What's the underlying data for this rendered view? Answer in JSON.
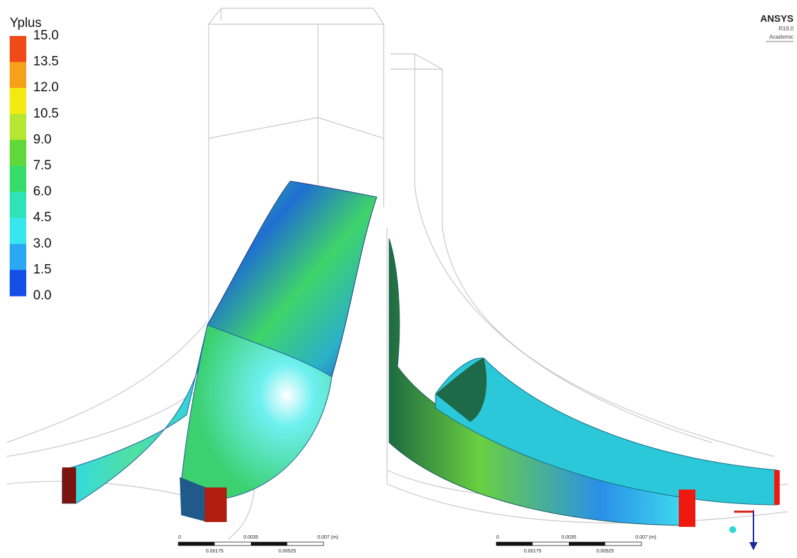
{
  "legend": {
    "title": "Yplus",
    "labels": [
      "15.0",
      "13.5",
      "12.0",
      "10.5",
      "9.0",
      "7.5",
      "6.0",
      "4.5",
      "3.0",
      "1.5",
      "0.0"
    ],
    "colors": [
      "#ee4a1a",
      "#f5a21a",
      "#f2ea10",
      "#b6e632",
      "#5ed83a",
      "#38dc6a",
      "#2fe2b8",
      "#3ae6ee",
      "#2aa8f2",
      "#1450e6"
    ]
  },
  "logo": {
    "name": "ANSYS",
    "version": "R19.0",
    "license": "Academic"
  },
  "scale_bars": [
    {
      "top": [
        "0",
        "0.0035",
        "0.007",
        "(m)"
      ],
      "bottom": [
        "0.00175",
        "0.00525"
      ]
    },
    {
      "top": [
        "0",
        "0.0035",
        "0.007",
        "(m)"
      ],
      "bottom": [
        "0.00175",
        "0.00525"
      ]
    }
  ]
}
